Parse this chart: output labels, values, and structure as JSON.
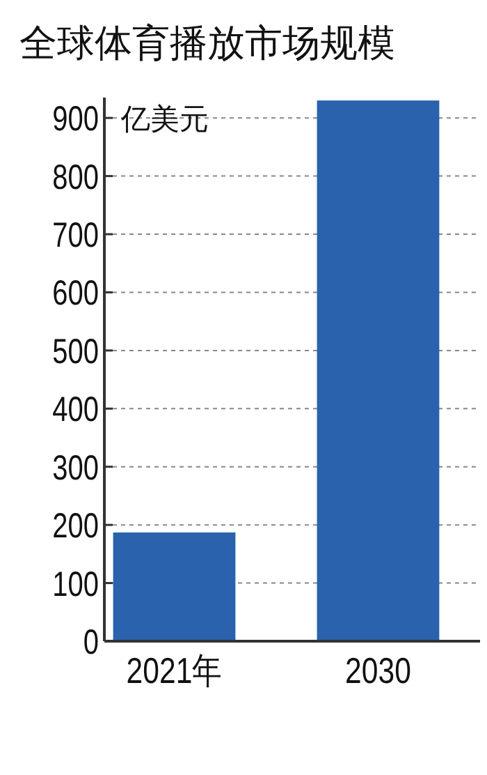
{
  "chart_data": {
    "type": "bar",
    "title": "全球体育播放市场规模",
    "ylabel": "亿美元",
    "categories": [
      "2021年",
      "2030"
    ],
    "values": [
      187,
      930
    ],
    "color": "#2a62ad",
    "ylim": [
      0,
      935
    ],
    "yticks": [
      0,
      100,
      200,
      300,
      400,
      500,
      600,
      700,
      800,
      900
    ],
    "grid": "y"
  }
}
